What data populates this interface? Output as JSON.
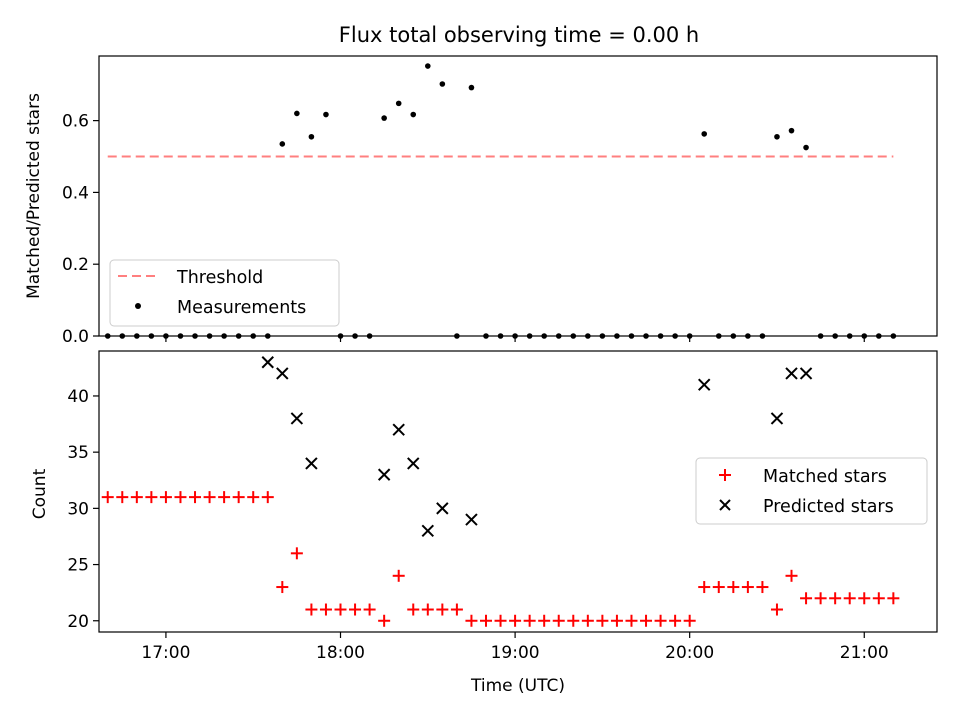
{
  "chart_data": [
    {
      "type": "scatter",
      "title": "Flux total observing time = 0.00 h",
      "xlabel": "",
      "ylabel": "Matched/Predicted stars",
      "xlim": [
        "16:37",
        "21:25"
      ],
      "ylim": [
        0,
        0.78
      ],
      "yticks": [
        "0.0",
        "0.2",
        "0.4",
        "0.6"
      ],
      "xticks": [
        "17:00",
        "18:00",
        "19:00",
        "20:00",
        "21:00"
      ],
      "legend": {
        "placement": "lower-left",
        "threshold_label": "Threshold",
        "measurements_label": "Measurements"
      },
      "threshold": {
        "value": 0.5,
        "x_start": "16:40",
        "x_end": "21:10",
        "color": "#ff7f7f"
      },
      "measurements": {
        "name": "Measurements",
        "color": "#000000",
        "x": [
          "16:40",
          "16:45",
          "16:50",
          "16:55",
          "17:00",
          "17:05",
          "17:10",
          "17:15",
          "17:20",
          "17:25",
          "17:30",
          "17:35",
          "17:40",
          "17:45",
          "17:50",
          "17:55",
          "18:00",
          "18:05",
          "18:10",
          "18:15",
          "18:20",
          "18:25",
          "18:30",
          "18:35",
          "18:40",
          "18:45",
          "18:50",
          "18:55",
          "19:00",
          "19:05",
          "19:10",
          "19:15",
          "19:20",
          "19:25",
          "19:30",
          "19:35",
          "19:40",
          "19:45",
          "19:50",
          "19:55",
          "20:00",
          "20:05",
          "20:10",
          "20:15",
          "20:20",
          "20:25",
          "20:30",
          "20:35",
          "20:40",
          "20:45",
          "20:50",
          "20:55",
          "21:00",
          "21:05",
          "21:10"
        ],
        "y": [
          0,
          0,
          0,
          0,
          0,
          0,
          0,
          0,
          0,
          0,
          0,
          0,
          0.535,
          0.62,
          0.555,
          0.617,
          0,
          0,
          0,
          0.607,
          0.648,
          0.617,
          0.752,
          0.702,
          0,
          0.692,
          0,
          0,
          0,
          0,
          0,
          0,
          0,
          0,
          0,
          0,
          0,
          0,
          0,
          0,
          0,
          0.563,
          0,
          0,
          0,
          0,
          0.555,
          0.572,
          0.525,
          0,
          0,
          0,
          0,
          0,
          0
        ]
      }
    },
    {
      "type": "scatter",
      "title": "",
      "xlabel": "Time (UTC)",
      "ylabel": "Count",
      "xlim": [
        "16:37",
        "21:25"
      ],
      "ylim": [
        19,
        44
      ],
      "yticks": [
        20,
        25,
        30,
        35,
        40
      ],
      "xticks": [
        "17:00",
        "18:00",
        "19:00",
        "20:00",
        "21:00"
      ],
      "legend": {
        "placement": "center-right"
      },
      "series": [
        {
          "name": "Matched stars",
          "marker": "+",
          "color": "#ff0000",
          "x": [
            "16:40",
            "16:45",
            "16:50",
            "16:55",
            "17:00",
            "17:05",
            "17:10",
            "17:15",
            "17:20",
            "17:25",
            "17:30",
            "17:35",
            "17:40",
            "17:45",
            "17:50",
            "17:55",
            "18:00",
            "18:05",
            "18:10",
            "18:15",
            "18:20",
            "18:25",
            "18:30",
            "18:35",
            "18:40",
            "18:45",
            "18:50",
            "18:55",
            "19:00",
            "19:05",
            "19:10",
            "19:15",
            "19:20",
            "19:25",
            "19:30",
            "19:35",
            "19:40",
            "19:45",
            "19:50",
            "19:55",
            "20:00",
            "20:05",
            "20:10",
            "20:15",
            "20:20",
            "20:25",
            "20:30",
            "20:35",
            "20:40",
            "20:45",
            "20:50",
            "20:55",
            "21:00",
            "21:05",
            "21:10"
          ],
          "y": [
            31,
            31,
            31,
            31,
            31,
            31,
            31,
            31,
            31,
            31,
            31,
            31,
            23,
            26,
            21,
            21,
            21,
            21,
            21,
            20,
            24,
            21,
            21,
            21,
            21,
            20,
            20,
            20,
            20,
            20,
            20,
            20,
            20,
            20,
            20,
            20,
            20,
            20,
            20,
            20,
            20,
            23,
            23,
            23,
            23,
            23,
            21,
            24,
            22,
            22,
            22,
            22,
            22,
            22,
            22
          ]
        },
        {
          "name": "Predicted stars",
          "marker": "x",
          "color": "#000000",
          "x": [
            "17:35",
            "17:40",
            "17:45",
            "17:50",
            "18:15",
            "18:20",
            "18:25",
            "18:30",
            "18:35",
            "18:45",
            "20:05",
            "20:30",
            "20:35",
            "20:40"
          ],
          "y": [
            43,
            42,
            38,
            34,
            33,
            37,
            34,
            28,
            30,
            29,
            41,
            38,
            42,
            42
          ]
        }
      ]
    }
  ]
}
